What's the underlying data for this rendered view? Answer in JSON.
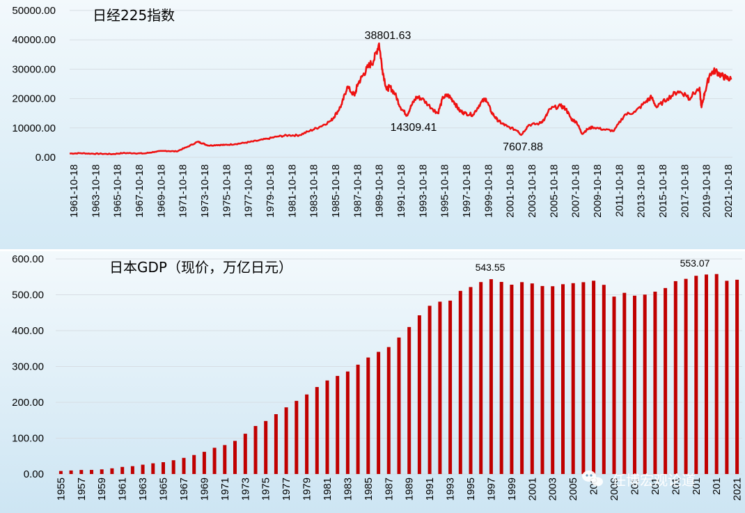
{
  "colors": {
    "line": "#ee1111",
    "bar": "#c00000",
    "grid": "#d6dde3",
    "text": "#000000"
  },
  "watermark": {
    "text": "任博宏观论道",
    "icon": "wechat-icon"
  },
  "chart_data": [
    {
      "type": "line",
      "title": "日经225指数",
      "xlabel": "",
      "ylabel": "",
      "ylim": [
        0,
        50000
      ],
      "y_ticks": [
        "0.00",
        "10000.00",
        "20000.00",
        "30000.00",
        "40000.00",
        "50000.00"
      ],
      "x_ticks": [
        "1961-10-18",
        "1963-10-18",
        "1965-10-18",
        "1967-10-18",
        "1969-10-18",
        "1971-10-18",
        "1973-10-18",
        "1975-10-18",
        "1977-10-18",
        "1979-10-18",
        "1981-10-18",
        "1983-10-18",
        "1985-10-18",
        "1987-10-18",
        "1989-10-18",
        "1991-10-18",
        "1993-10-18",
        "1995-10-18",
        "1997-10-18",
        "1999-10-18",
        "2001-10-18",
        "2003-10-18",
        "2005-10-18",
        "2007-10-18",
        "2009-10-18",
        "2011-10-18",
        "2013-10-18",
        "2015-10-18",
        "2017-10-18",
        "2019-10-18",
        "2021-10-18"
      ],
      "xlim": [
        1961.0,
        2023.1
      ],
      "series": [
        {
          "x": [
            1961.0,
            1962.0,
            1963.0,
            1964.0,
            1965.0,
            1966.0,
            1967.0,
            1968.0,
            1969.0,
            1970.0,
            1971.0,
            1972.0,
            1973.0,
            1973.5,
            1974.0,
            1974.8,
            1975.5,
            1976.5,
            1977.5,
            1978.5,
            1979.5,
            1980.5,
            1981.5,
            1982.5,
            1983.5,
            1984.5,
            1985.5,
            1986.0,
            1986.5,
            1987.0,
            1987.7,
            1988.0,
            1988.5,
            1989.0,
            1989.5,
            1989.99,
            1990.3,
            1990.7,
            1991.0,
            1991.5,
            1992.0,
            1992.6,
            1993.0,
            1993.5,
            1994.0,
            1995.0,
            1995.5,
            1996.0,
            1996.5,
            1997.0,
            1997.5,
            1998.0,
            1998.8,
            1999.5,
            2000.0,
            2000.5,
            2001.0,
            2001.5,
            2002.0,
            2003.0,
            2003.3,
            2004.0,
            2005.0,
            2005.5,
            2006.0,
            2007.0,
            2007.5,
            2008.0,
            2008.5,
            2009.0,
            2009.5,
            2010.0,
            2011.0,
            2012.0,
            2013.0,
            2014.0,
            2015.0,
            2015.5,
            2016.0,
            2017.0,
            2018.0,
            2018.9,
            2019.0,
            2020.0,
            2020.2,
            2020.5,
            2021.0,
            2021.5,
            2022.0,
            2022.5,
            2023.0
          ],
          "y": [
            1300,
            1400,
            1250,
            1200,
            1100,
            1450,
            1400,
            1300,
            1900,
            2200,
            2000,
            3500,
            5300,
            4700,
            4000,
            4200,
            4200,
            4500,
            5000,
            5600,
            6300,
            7100,
            7500,
            7500,
            9000,
            10500,
            12500,
            15000,
            18000,
            24000,
            21000,
            25000,
            28000,
            31000,
            33000,
            38801.63,
            30000,
            23000,
            24000,
            21500,
            17000,
            14309.41,
            17500,
            20500,
            20000,
            16500,
            15000,
            20500,
            21000,
            19000,
            16000,
            15000,
            14500,
            18500,
            20000,
            15500,
            13000,
            11500,
            10500,
            9000,
            7607.88,
            11000,
            11500,
            13000,
            16500,
            17500,
            16500,
            13000,
            12000,
            8000,
            9500,
            10300,
            9500,
            9000,
            14500,
            15500,
            19000,
            20500,
            17000,
            20000,
            22500,
            21000,
            20000,
            23500,
            17000,
            22000,
            28500,
            29500,
            28000,
            27000,
            26500
          ]
        }
      ],
      "annotations": [
        "38801.63",
        "14309.41",
        "7607.88"
      ]
    },
    {
      "type": "bar",
      "title": "日本GDP（现价，万亿日元）",
      "xlabel": "",
      "ylabel": "",
      "ylim": [
        0,
        600
      ],
      "y_ticks": [
        "0.00",
        "100.00",
        "200.00",
        "300.00",
        "400.00",
        "500.00",
        "600.00"
      ],
      "categories": [
        "1955",
        "1956",
        "1957",
        "1958",
        "1959",
        "1960",
        "1961",
        "1962",
        "1963",
        "1964",
        "1965",
        "1966",
        "1967",
        "1968",
        "1969",
        "1970",
        "1971",
        "1972",
        "1973",
        "1974",
        "1975",
        "1976",
        "1977",
        "1978",
        "1979",
        "1980",
        "1981",
        "1982",
        "1983",
        "1984",
        "1985",
        "1986",
        "1987",
        "1988",
        "1989",
        "1990",
        "1991",
        "1992",
        "1993",
        "1994",
        "1995",
        "1996",
        "1997",
        "1998",
        "1999",
        "2000",
        "2001",
        "2002",
        "2003",
        "2004",
        "2005",
        "2006",
        "2007",
        "2008",
        "2009",
        "2010",
        "2011",
        "2012",
        "2013",
        "2014",
        "2015",
        "2016",
        "2017",
        "2018",
        "2019",
        "2020",
        "2021"
      ],
      "x_tick_labels": [
        "1955",
        "1957",
        "1959",
        "1961",
        "1963",
        "1965",
        "1967",
        "1969",
        "1971",
        "1973",
        "1975",
        "1977",
        "1979",
        "1981",
        "1983",
        "1985",
        "1987",
        "1989",
        "1991",
        "1993",
        "1995",
        "1997",
        "1999",
        "2001",
        "2003",
        "2005",
        "200",
        "2009",
        "201",
        "201",
        "201",
        "201",
        "201",
        "2021"
      ],
      "values": [
        8.6,
        10,
        11.2,
        11.5,
        13,
        16,
        19.9,
        22,
        26,
        30,
        33,
        38.5,
        45,
        53,
        62,
        73.3,
        80.7,
        92.4,
        112.5,
        134,
        148,
        167,
        186,
        204,
        222,
        242.8,
        261,
        273.5,
        286,
        305,
        325,
        340.7,
        354.2,
        380.7,
        410.1,
        442.8,
        469.4,
        480.8,
        483.7,
        510.9,
        521.6,
        535.6,
        543.55,
        536,
        528.1,
        535.4,
        531.7,
        524.5,
        523.9,
        529.6,
        532.5,
        535.2,
        539.3,
        527.8,
        494.9,
        505.5,
        497.4,
        500.5,
        508.7,
        518.8,
        538,
        544.4,
        553.07,
        556.6,
        557.9,
        539,
        541.9
      ],
      "annotations": [
        "543.55",
        "553.07"
      ]
    }
  ]
}
